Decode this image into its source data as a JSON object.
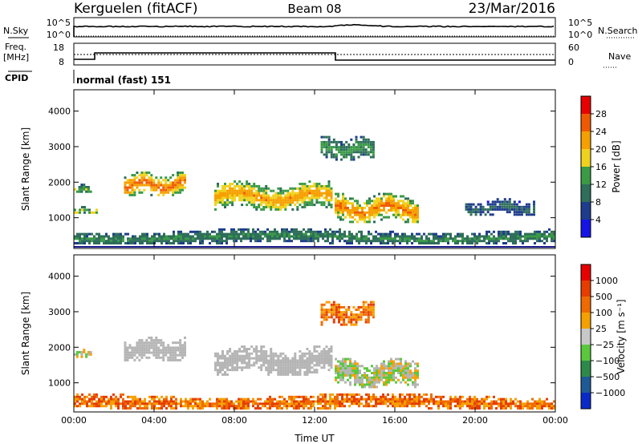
{
  "header": {
    "station": "Kerguelen (fitACF)",
    "beam": "Beam 08",
    "date": "23/Mar/2016"
  },
  "strips": {
    "nsky_label": "N.Sky",
    "nsky_ticks": [
      "10^5",
      "10^0"
    ],
    "nsearch_label": "N.Search",
    "nsearch_ticks": [
      "10^5",
      "10^0"
    ],
    "freq_label_1": "Freq.",
    "freq_label_2": "[MHz]",
    "freq_ticks": [
      "18",
      "8"
    ],
    "nave_label": "Nave",
    "nave_ticks": [
      "60",
      "0"
    ],
    "cpid_label": "CPID",
    "cpid_value": "normal (fast) 151"
  },
  "colors": {
    "power_scale": [
      "#1414e6",
      "#1e3c8c",
      "#2e6e5a",
      "#3a9a46",
      "#f0d21e",
      "#f5a000",
      "#ef5a00",
      "#e60000"
    ],
    "velocity_scale": [
      "#0a2ac8",
      "#1f5a96",
      "#2d8a4a",
      "#5ac83c",
      "#c8c8c8",
      "#f5a000",
      "#ef6a00",
      "#e63c00",
      "#e60000"
    ],
    "ground_scatter": "#b4b4b4"
  },
  "chart_data": [
    {
      "type": "heatmap",
      "panel": "power",
      "xlabel": "",
      "ylabel": "Slant Range [km]",
      "x_ticks": [
        "00:00",
        "04:00",
        "08:00",
        "12:00",
        "16:00",
        "20:00",
        "00:00"
      ],
      "xlim": [
        0,
        24
      ],
      "y_ticks": [
        "1000",
        "2000",
        "3000",
        "4000"
      ],
      "ylim": [
        180,
        4600
      ],
      "colorbar_label": "Power [dB]",
      "colorbar_ticks": [
        "4",
        "8",
        "12",
        "16",
        "20",
        "24",
        "28"
      ],
      "colorbar_range": [
        0,
        32
      ],
      "bands": [
        {
          "t": [
            0.0,
            0.9
          ],
          "r": [
            1700,
            1960
          ],
          "peak": 16
        },
        {
          "t": [
            0.0,
            1.2
          ],
          "r": [
            1100,
            1330
          ],
          "peak": 18
        },
        {
          "t": [
            2.5,
            5.6
          ],
          "r": [
            1600,
            2300
          ],
          "peak": 28
        },
        {
          "t": [
            7.0,
            12.9
          ],
          "r": [
            1200,
            2050
          ],
          "peak": 24
        },
        {
          "t": [
            12.3,
            15.0
          ],
          "r": [
            2600,
            3300
          ],
          "peak": 14
        },
        {
          "t": [
            13.0,
            17.2
          ],
          "r": [
            850,
            1700
          ],
          "peak": 26
        },
        {
          "t": [
            19.5,
            23.0
          ],
          "r": [
            1050,
            1550
          ],
          "peak": 8
        },
        {
          "t": [
            0.0,
            24.0
          ],
          "r": [
            250,
            700
          ],
          "peak": 12
        }
      ]
    },
    {
      "type": "heatmap",
      "panel": "velocity",
      "xlabel": "Time UT",
      "ylabel": "Slant Range [km]",
      "x_ticks": [
        "00:00",
        "04:00",
        "08:00",
        "12:00",
        "16:00",
        "20:00",
        "00:00"
      ],
      "xlim": [
        0,
        24
      ],
      "y_ticks": [
        "1000",
        "2000",
        "3000",
        "4000"
      ],
      "ylim": [
        180,
        4600
      ],
      "colorbar_label": "Velocity [m s⁻¹]",
      "colorbar_ticks": [
        "1000",
        "500",
        "100",
        "25",
        "−25",
        "−100",
        "−500",
        "−1000"
      ],
      "colorbar_range": [
        -1000,
        1000
      ],
      "bands": [
        {
          "t": [
            0.0,
            0.9
          ],
          "r": [
            1700,
            1960
          ],
          "kind": "mixed"
        },
        {
          "t": [
            2.5,
            5.6
          ],
          "r": [
            1600,
            2300
          ],
          "kind": "ground"
        },
        {
          "t": [
            7.0,
            12.9
          ],
          "r": [
            1200,
            2050
          ],
          "kind": "ground"
        },
        {
          "t": [
            12.3,
            15.0
          ],
          "r": [
            2600,
            3300
          ],
          "kind": "negative"
        },
        {
          "t": [
            13.0,
            17.2
          ],
          "r": [
            850,
            1700
          ],
          "kind": "mixed"
        },
        {
          "t": [
            0.0,
            24.0
          ],
          "r": [
            250,
            700
          ],
          "kind": "negative"
        }
      ]
    }
  ]
}
